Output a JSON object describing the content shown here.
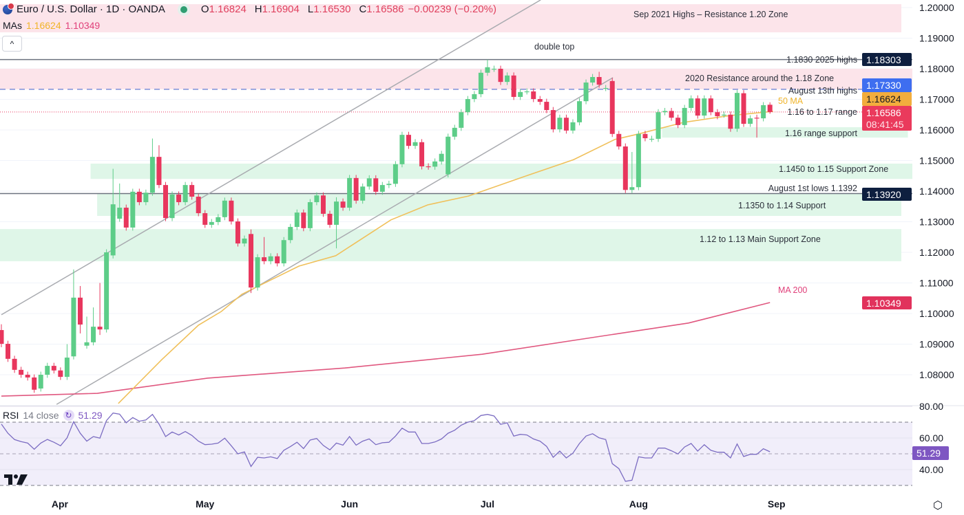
{
  "header": {
    "symbol_title": "Euro / U.S. Dollar · 1D · OANDA",
    "open_label": "O",
    "open": "1.16824",
    "high_label": "H",
    "high": "1.16904",
    "low_label": "L",
    "low": "1.16530",
    "close_label": "C",
    "close": "1.16586",
    "change": "−0.00239 (−0.20%)",
    "mas_label": "MAs",
    "ma50_value": "1.16624",
    "ma200_value": "1.10349",
    "collapse_glyph": "^"
  },
  "rsi_header": {
    "name": "RSI",
    "params": "14 close",
    "value": "51.29",
    "icon": "refresh-icon"
  },
  "colors": {
    "up": "#5dcd88",
    "down": "#e8365d",
    "ma50": "#f0c05a",
    "ma200": "#e0577f",
    "rsi": "#7b6cc2",
    "zone_pink": "#fce4ea",
    "zone_green": "#dff6e8",
    "trend": "#a9abb0"
  },
  "chart_data": {
    "type": "candlestick",
    "title": "Euro / U.S. Dollar · 1D · OANDA",
    "price_axis": {
      "ylim": [
        1.072,
        1.2025
      ],
      "ticks": [
        "1.20000",
        "1.19000",
        "1.18000",
        "1.17000",
        "1.16000",
        "1.15000",
        "1.14000",
        "1.13000",
        "1.12000",
        "1.11000",
        "1.10000",
        "1.09000",
        "1.08000"
      ]
    },
    "time_axis": {
      "ticks": [
        {
          "label": "Apr",
          "bar": 8.9
        },
        {
          "label": "May",
          "bar": 31
        },
        {
          "label": "Jun",
          "bar": 53
        },
        {
          "label": "Jul",
          "bar": 74
        },
        {
          "label": "Aug",
          "bar": 97
        },
        {
          "label": "Sep",
          "bar": 118
        }
      ]
    },
    "candles_note": "[open, close, high?, low?]",
    "candles": [
      [
        1.0946,
        1.0901,
        1.0965,
        1.089
      ],
      [
        1.0901,
        1.0852
      ],
      [
        1.0852,
        1.0816
      ],
      [
        1.0816,
        1.08
      ],
      [
        1.08,
        1.0791
      ],
      [
        1.0791,
        1.0751
      ],
      [
        1.0755,
        1.08
      ],
      [
        1.08,
        1.0829
      ],
      [
        1.0829,
        1.0814
      ],
      [
        1.0814,
        1.0793
      ],
      [
        1.0793,
        1.0856,
        1.09
      ],
      [
        1.086,
        1.1052,
        1.1144
      ],
      [
        1.1052,
        1.0964,
        1.109,
        1.0935
      ],
      [
        1.0895,
        1.0906,
        1.099,
        1.0885
      ],
      [
        1.0906,
        1.0957,
        1.102
      ],
      [
        1.0957,
        1.0948,
        1.11,
        1.093
      ],
      [
        1.0948,
        1.12
      ],
      [
        1.119,
        1.1357,
        1.1473
      ],
      [
        1.131,
        1.1346,
        1.1425,
        1.13
      ],
      [
        1.1346,
        1.1281
      ],
      [
        1.1281,
        1.1398
      ],
      [
        1.1398,
        1.1364
      ],
      [
        1.1364,
        1.1395
      ],
      [
        1.1395,
        1.1512,
        1.1572
      ],
      [
        1.1512,
        1.142,
        1.155
      ],
      [
        1.142,
        1.1312
      ],
      [
        1.1312,
        1.1389
      ],
      [
        1.1389,
        1.1364
      ],
      [
        1.1364,
        1.142
      ],
      [
        1.142,
        1.1382
      ],
      [
        1.1382,
        1.1328
      ],
      [
        1.1328,
        1.129
      ],
      [
        1.129,
        1.1299
      ],
      [
        1.1299,
        1.1315
      ],
      [
        1.1315,
        1.1369
      ],
      [
        1.1369,
        1.1301
      ],
      [
        1.1301,
        1.1229
      ],
      [
        1.1229,
        1.1245
      ],
      [
        1.126,
        1.1085,
        1.1275,
        1.1067
      ],
      [
        1.1085,
        1.1184
      ],
      [
        1.1184,
        1.1171,
        1.125
      ],
      [
        1.1171,
        1.1187
      ],
      [
        1.1187,
        1.1164
      ],
      [
        1.1164,
        1.124
      ],
      [
        1.124,
        1.1283
      ],
      [
        1.1283,
        1.133
      ],
      [
        1.133,
        1.1279
      ],
      [
        1.1279,
        1.1364
      ],
      [
        1.1364,
        1.1386
      ],
      [
        1.1386,
        1.1326
      ],
      [
        1.1326,
        1.129
      ],
      [
        1.129,
        1.1366,
        1.138,
        1.1213
      ],
      [
        1.1366,
        1.1346
      ],
      [
        1.1346,
        1.1443
      ],
      [
        1.1443,
        1.1369
      ],
      [
        1.1369,
        1.1415
      ],
      [
        1.1415,
        1.1442
      ],
      [
        1.1442,
        1.1398
      ],
      [
        1.1398,
        1.142
      ],
      [
        1.142,
        1.1424
      ],
      [
        1.1424,
        1.1488
      ],
      [
        1.1488,
        1.1584
      ],
      [
        1.1584,
        1.1548
      ],
      [
        1.1548,
        1.156
      ],
      [
        1.156,
        1.1481
      ],
      [
        1.1481,
        1.148
      ],
      [
        1.148,
        1.1497
      ],
      [
        1.1497,
        1.1522
      ],
      [
        1.1455,
        1.1578
      ],
      [
        1.1578,
        1.1607
      ],
      [
        1.1607,
        1.1658
      ],
      [
        1.1658,
        1.1701
      ],
      [
        1.1701,
        1.1717
      ],
      [
        1.1717,
        1.1787
      ],
      [
        1.1787,
        1.1805,
        1.183
      ],
      [
        1.18,
        1.18
      ],
      [
        1.18,
        1.1757
      ],
      [
        1.1757,
        1.1778
      ],
      [
        1.1778,
        1.1708
      ],
      [
        1.1708,
        1.1724
      ],
      [
        1.1726,
        1.1726
      ],
      [
        1.1726,
        1.1701
      ],
      [
        1.1701,
        1.1692
      ],
      [
        1.1692,
        1.1665
      ],
      [
        1.1665,
        1.1602
      ],
      [
        1.1602,
        1.164
      ],
      [
        1.164,
        1.1598
      ],
      [
        1.1598,
        1.1625
      ],
      [
        1.1625,
        1.1694
      ],
      [
        1.1694,
        1.1755
      ],
      [
        1.1755,
        1.1773
      ],
      [
        1.1773,
        1.1748,
        1.179
      ],
      [
        1.1737,
        1.1737
      ],
      [
        1.176,
        1.1587
      ],
      [
        1.1587,
        1.1546
      ],
      [
        1.1546,
        1.1404
      ],
      [
        1.1404,
        1.1413,
        1.1528
      ],
      [
        1.1413,
        1.1587
      ],
      [
        1.1587,
        1.1573
      ],
      [
        1.1571,
        1.1571
      ],
      [
        1.1571,
        1.1658
      ],
      [
        1.1658,
        1.1662
      ],
      [
        1.1662,
        1.164
      ],
      [
        1.164,
        1.1616
      ],
      [
        1.1616,
        1.1672
      ],
      [
        1.1672,
        1.1703
      ],
      [
        1.1703,
        1.1647
      ],
      [
        1.1647,
        1.1703
      ],
      [
        1.1703,
        1.1658
      ],
      [
        1.1658,
        1.1645
      ],
      [
        1.165,
        1.165
      ],
      [
        1.165,
        1.1604
      ],
      [
        1.1604,
        1.1721,
        1.173
      ],
      [
        1.172,
        1.162
      ],
      [
        1.162,
        1.1638
      ],
      [
        1.164,
        1.1638,
        1.165,
        1.1575
      ],
      [
        1.1638,
        1.1681
      ],
      [
        1.16824,
        1.16586,
        1.16904,
        1.1653
      ]
    ],
    "ma50": [
      [
        17.8,
        1.0706
      ],
      [
        24.4,
        1.0849
      ],
      [
        30,
        1.0962
      ],
      [
        33.5,
        1.1007
      ],
      [
        36.6,
        1.1063
      ],
      [
        45.3,
        1.1155
      ],
      [
        50.9,
        1.1189
      ],
      [
        59.3,
        1.1306
      ],
      [
        64.9,
        1.1355
      ],
      [
        71.1,
        1.1384
      ],
      [
        79.5,
        1.1447
      ],
      [
        87.1,
        1.1503
      ],
      [
        93.4,
        1.1569
      ],
      [
        97,
        1.1587
      ],
      [
        103.9,
        1.1625
      ],
      [
        110.9,
        1.1647
      ],
      [
        117.5,
        1.1661
      ]
    ],
    "ma200": [
      [
        0,
        1.073
      ],
      [
        14.6,
        1.0739
      ],
      [
        31.4,
        1.0789
      ],
      [
        52.3,
        1.0822
      ],
      [
        73.2,
        1.0867
      ],
      [
        94.1,
        1.0935
      ],
      [
        104.6,
        1.0969
      ],
      [
        117,
        1.1036
      ]
    ],
    "trendlines": [
      {
        "name": "upper-channel",
        "from": [
          0,
          1.0996
        ],
        "to": [
          82.1,
          1.2025
        ]
      },
      {
        "name": "lower-trendline",
        "from": [
          8.4,
          1.0703
        ],
        "to": [
          93.1,
          1.1771
        ]
      }
    ],
    "zones": [
      {
        "name": "sep-2021-highs",
        "kind": "resistance",
        "top": 1.2011,
        "bottom": 1.1919,
        "from_bar": 0,
        "to_bar": 137,
        "label": "Sep 2021 Highs – Resistance 1.20 Zone"
      },
      {
        "name": "resistance-1-18",
        "kind": "resistance",
        "top": 1.18,
        "bottom": 1.1733,
        "from_bar": 0,
        "to_bar": 139,
        "label": "2020 Resistance around the 1.18 Zone"
      },
      {
        "name": "range-support-1-16",
        "kind": "support",
        "top": 1.1609,
        "bottom": 1.1575,
        "from_bar": 101,
        "to_bar": 138,
        "label": "1.16 range support"
      },
      {
        "name": "support-1-145",
        "kind": "support",
        "top": 1.149,
        "bottom": 1.144,
        "from_bar": 14,
        "to_bar": 139,
        "label": "1.1450 to 1.15 Support Zone"
      },
      {
        "name": "support-1-135",
        "kind": "support",
        "top": 1.1392,
        "bottom": 1.1319,
        "from_bar": 15,
        "to_bar": 137,
        "label": "1.1350 to 1.14 Support"
      },
      {
        "name": "main-support-1-12",
        "kind": "support",
        "top": 1.1276,
        "bottom": 1.1171,
        "from_bar": 0,
        "to_bar": 137,
        "label": "1.12 to 1.13 Main Support Zone"
      }
    ],
    "hlines": [
      {
        "name": "2025-highs",
        "price": 1.183,
        "style": "solid",
        "label": "1.1830 2025 highs",
        "tag": "1.18303"
      },
      {
        "name": "aug-13-highs",
        "price": 1.1733,
        "style": "dashed",
        "label": "August 13th highs",
        "tag": "1.17330"
      },
      {
        "name": "aug-1-lows",
        "price": 1.1392,
        "style": "solid",
        "label": "August 1st lows 1.1392",
        "tag": "1.13920"
      }
    ],
    "annotations": {
      "double_top": "double top",
      "range": "1.16 to 1.17 range",
      "ma50": "50 MA",
      "ma200": "MA 200"
    },
    "price_tags": {
      "ma50": "1.16624",
      "last": "1.16586",
      "countdown": "08:41:45",
      "ma200": "1.10349"
    },
    "last_price": 1.16586,
    "rsi": {
      "ylim": [
        25,
        82
      ],
      "bands": [
        70,
        50,
        30
      ],
      "ticks": [
        "80.00",
        "60.00",
        "40.00"
      ],
      "last": "51.29",
      "values": [
        68.8,
        63,
        59,
        57.7,
        56.8,
        52.9,
        56.8,
        59.1,
        57.3,
        55.1,
        60.1,
        70.3,
        63,
        58,
        60.9,
        59.9,
        71,
        75.8,
        75.1,
        69.6,
        72.9,
        70.6,
        71.4,
        74.9,
        68.8,
        60.9,
        63.8,
        61.9,
        64.1,
        61.6,
        58,
        55.8,
        56.1,
        56.8,
        59.9,
        55.1,
        50,
        51.2,
        42,
        47.8,
        47.4,
        48.1,
        47,
        52.2,
        54.6,
        57.3,
        53.3,
        58.7,
        59.7,
        55.3,
        52.5,
        56.8,
        55.5,
        60.9,
        55.5,
        58,
        59.4,
        55.8,
        57,
        57.3,
        61.2,
        66.2,
        63.8,
        63.8,
        56.5,
        56.5,
        57.5,
        59.4,
        63,
        64.9,
        68.1,
        70,
        71,
        74.2,
        74.9,
        73.9,
        68.6,
        69.6,
        61.2,
        62.3,
        61.9,
        59.4,
        58,
        54.7,
        47.8,
        51.7,
        47.4,
        50.4,
        56.5,
        61.2,
        62.7,
        60.1,
        59,
        43.8,
        40.6,
        32.6,
        33.3,
        48.1,
        47.4,
        47.4,
        53.6,
        53.6,
        51.9,
        49.9,
        54.3,
        56.5,
        51.7,
        55.8,
        52.2,
        51,
        51,
        47.4,
        56.2,
        48.3,
        49.7,
        49.7,
        53.2,
        51.29
      ]
    }
  }
}
